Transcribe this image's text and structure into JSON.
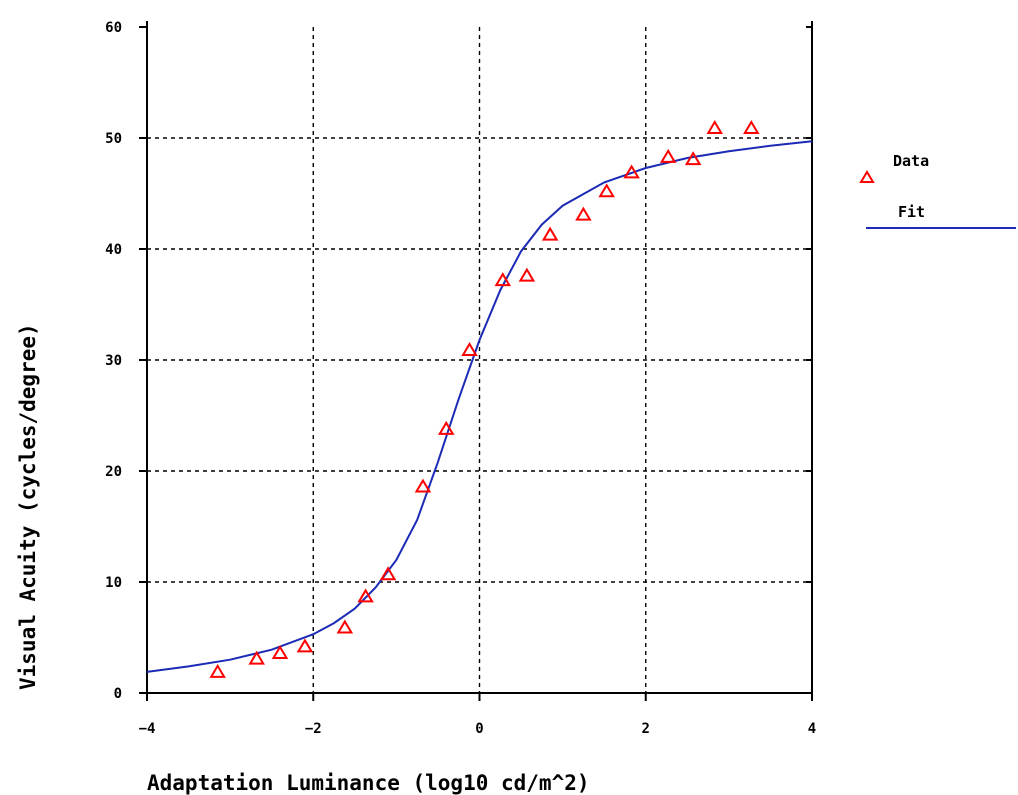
{
  "chart_data": {
    "type": "scatter",
    "xlabel": "Adaptation Luminance (log10 cd/m^2)",
    "ylabel": "Visual Acuity (cycles/degree)",
    "xlim": [
      -4,
      4
    ],
    "ylim": [
      0,
      60
    ],
    "x_ticks": [
      -4,
      -2,
      0,
      2,
      4
    ],
    "y_ticks": [
      0,
      10,
      20,
      30,
      40,
      50,
      60
    ],
    "grid": true,
    "legend_position": "right",
    "series": [
      {
        "name": "Data",
        "kind": "markers",
        "marker": "triangle",
        "color": "#ff0000",
        "x": [
          -3.15,
          -2.68,
          -2.4,
          -2.1,
          -1.62,
          -1.37,
          -1.1,
          -0.68,
          -0.4,
          -0.12,
          0.28,
          0.57,
          0.85,
          1.25,
          1.53,
          1.83,
          2.27,
          2.57,
          2.83,
          3.27
        ],
        "y": [
          1.9,
          3.1,
          3.6,
          4.2,
          5.9,
          8.7,
          10.7,
          18.6,
          23.8,
          30.9,
          37.2,
          37.6,
          41.3,
          43.1,
          45.2,
          46.9,
          48.3,
          48.1,
          50.9,
          50.9
        ]
      },
      {
        "name": "Fit",
        "kind": "line",
        "color": "#1c2bb5",
        "x": [
          -4.0,
          -3.5,
          -3.0,
          -2.5,
          -2.0,
          -1.75,
          -1.5,
          -1.25,
          -1.0,
          -0.75,
          -0.5,
          -0.25,
          0.0,
          0.25,
          0.5,
          0.75,
          1.0,
          1.5,
          2.0,
          2.5,
          3.0,
          3.5,
          4.0
        ],
        "y": [
          1.9,
          2.4,
          3.0,
          3.9,
          5.3,
          6.3,
          7.6,
          9.5,
          12.0,
          15.6,
          20.8,
          26.5,
          31.8,
          36.3,
          39.8,
          42.2,
          43.9,
          46.0,
          47.3,
          48.2,
          48.8,
          49.3,
          49.7
        ]
      }
    ]
  },
  "axes": {
    "x_tick_labels": [
      "−4",
      "−2",
      "0",
      "2",
      "4"
    ],
    "y_tick_labels": [
      "0",
      "10",
      "20",
      "30",
      "40",
      "50",
      "60"
    ],
    "xlabel_display": "Adaptation Luminance (log10 cd/m^2)",
    "ylabel_display": "Visual Acuity (cycles/degree)"
  },
  "legend": {
    "data_label": "Data",
    "fit_label": "Fit"
  }
}
